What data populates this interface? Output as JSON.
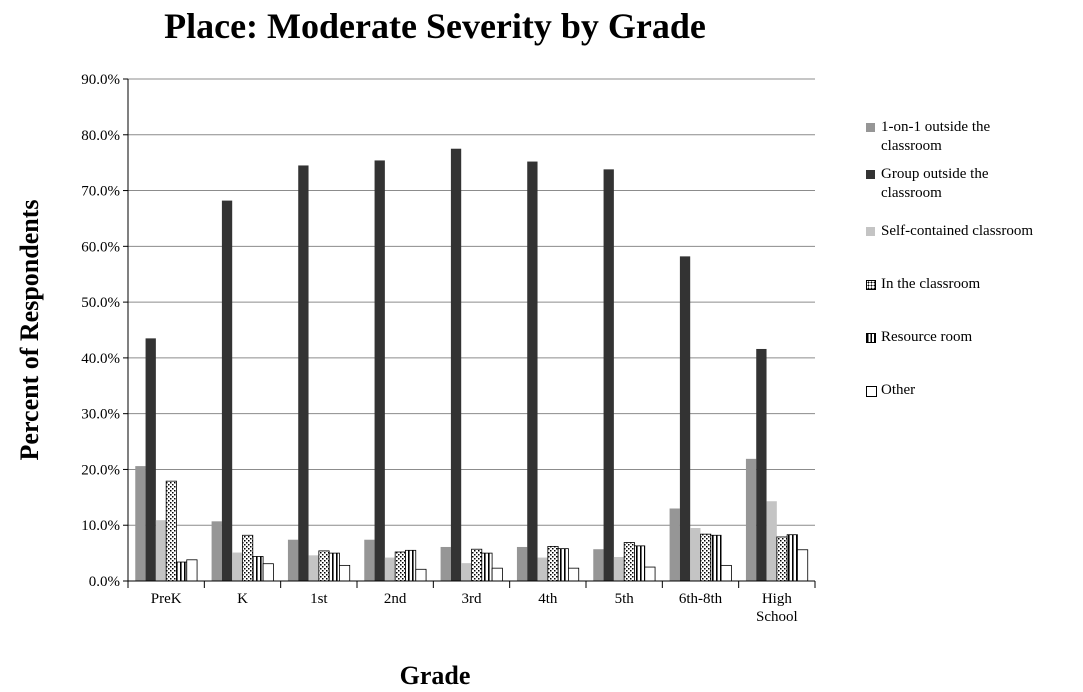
{
  "chart_data": {
    "type": "bar",
    "title": "Place: Moderate Severity by Grade",
    "x_label": "Grade",
    "y_label": "Percent of Respondents",
    "categories": [
      "PreK",
      "K",
      "1st",
      "2nd",
      "3rd",
      "4th",
      "5th",
      "6th-8th",
      "High School"
    ],
    "series": [
      {
        "name": "1-on-1 outside the classroom",
        "color": "#969696",
        "values": [
          20.6,
          10.7,
          7.4,
          7.4,
          6.1,
          6.1,
          5.7,
          13.0,
          21.9
        ]
      },
      {
        "name": "Group outside the classroom",
        "color": "#333333",
        "values": [
          43.5,
          68.2,
          74.5,
          75.4,
          77.5,
          75.2,
          73.8,
          58.2,
          41.6
        ]
      },
      {
        "name": "Self-contained classroom",
        "color": "#c4c4c4",
        "values": [
          10.9,
          5.1,
          4.6,
          4.2,
          3.2,
          4.2,
          4.3,
          9.5,
          14.3
        ]
      },
      {
        "name": "In the classroom",
        "color": "#ffffff",
        "pattern": "dots",
        "values": [
          17.9,
          8.2,
          5.4,
          5.2,
          5.7,
          6.2,
          6.9,
          8.4,
          7.9
        ]
      },
      {
        "name": "Resource room",
        "color": "#ffffff",
        "pattern": "stripes",
        "values": [
          3.4,
          4.4,
          5.0,
          5.5,
          5.0,
          5.8,
          6.3,
          8.2,
          8.3
        ]
      },
      {
        "name": "Other",
        "color": "#ffffff",
        "values": [
          3.8,
          3.1,
          2.8,
          2.1,
          2.3,
          2.3,
          2.5,
          2.8,
          5.6
        ]
      }
    ],
    "ylim": [
      0,
      90
    ],
    "yticks": [
      {
        "value": 0,
        "label": "0.0%"
      },
      {
        "value": 10,
        "label": "10.0%"
      },
      {
        "value": 20,
        "label": "20.0%"
      },
      {
        "value": 30,
        "label": "30.0%"
      },
      {
        "value": 40,
        "label": "40.0%"
      },
      {
        "value": 50,
        "label": "50.0%"
      },
      {
        "value": 60,
        "label": "60.0%"
      },
      {
        "value": 70,
        "label": "70.0%"
      },
      {
        "value": 80,
        "label": "80.0%"
      },
      {
        "value": 90,
        "label": "90.0%"
      }
    ],
    "grid": true,
    "legend": "right"
  }
}
